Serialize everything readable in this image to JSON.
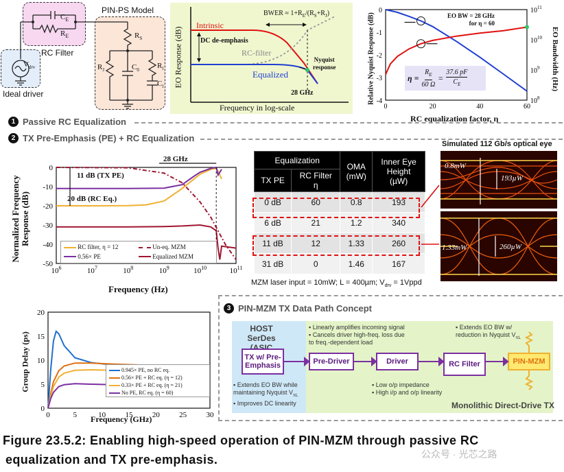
{
  "top_circuit": {
    "ce_label": "C",
    "ce_sub": "E",
    "re_label": "R",
    "re_sub": "E",
    "rc_filter_label": "RC Filter",
    "vdrv_label": "V",
    "vdrv_sub": "drv",
    "driver_label": "Ideal driver",
    "pinps_title": "PIN-PS Model",
    "rs_label": "R",
    "rs_sub": "S",
    "rj_label": "R",
    "rj_sub": "J",
    "c0_label": "C",
    "c0_sub": "0",
    "rl_label": "R",
    "rl_sub": "l",
    "cl_label": "C",
    "cl_sub": "l"
  },
  "concept_plot": {
    "ylabel": "EO Response (dB)",
    "xlabel": "Frequency in log-scale",
    "bwer": "BWER ≈ 1+R",
    "bwer_sub1": "E",
    "bwer_mid": "/(R",
    "bwer_sub2": "S",
    "bwer_plus": "+R",
    "bwer_sub3": "J",
    "bwer_end": ")",
    "intrinsic": "Intrinsic",
    "dc_deemph": "DC de-emphasis",
    "rc_filter": "RC-filter",
    "equalized": "Equalized",
    "nyquist": "Nyquist",
    "nyquist2": "response",
    "freq_28": "28 GHz",
    "colors": {
      "intrinsic": "#e01010",
      "rc": "#999999",
      "equalized": "#1f3fd0",
      "bg": "#f0f7cf"
    }
  },
  "eta_plot": {
    "chart_data": {
      "type": "line",
      "title": "",
      "xlabel": "RC equalization factor, η",
      "ylabel_left": "Relative Nyquist Response (dB)",
      "ylabel_right": "EO Bandwidth (Hz)",
      "xlim": [
        0,
        60
      ],
      "ylim_left": [
        -4,
        0
      ],
      "ylim_right_log10": [
        8,
        11
      ],
      "xticks": [
        "0",
        "20",
        "40",
        "60"
      ],
      "yticks_left": [
        "0",
        "-1",
        "-2",
        "-3",
        "-4"
      ],
      "yticks_right": [
        "10",
        "10",
        "10",
        "10"
      ],
      "yticks_right_exp": [
        "11",
        "10",
        "9",
        "8"
      ],
      "series": [
        {
          "name": "Relative Nyquist Response",
          "axis": "left",
          "color": "#1f3fd0",
          "x": [
            0,
            5,
            10,
            15,
            20,
            30,
            40,
            50,
            60
          ],
          "y": [
            0,
            -0.12,
            -0.3,
            -0.5,
            -0.75,
            -1.4,
            -2.1,
            -2.85,
            -3.6
          ]
        },
        {
          "name": "EO Bandwidth",
          "axis": "right_log10",
          "color": "#e01010",
          "x": [
            0,
            2,
            5,
            10,
            15,
            20,
            30,
            40,
            50,
            60
          ],
          "y": [
            8.85,
            9.2,
            9.45,
            9.7,
            9.87,
            9.98,
            10.12,
            10.22,
            10.3,
            10.42
          ]
        }
      ]
    },
    "annot": "EO BW = 28 GHz",
    "annot2": "for η = 60",
    "formula_eta": "η =",
    "formula_re": "R",
    "formula_re_sub": "E",
    "formula_den": "60 Ω",
    "formula_eq": "=",
    "formula_num2": "37.6 pF",
    "formula_ce": "C",
    "formula_ce_sub": "E"
  },
  "section1": {
    "num": "1",
    "title": "Passive RC Equalization"
  },
  "section2": {
    "num": "2",
    "title": "TX Pre-Emphasis (PE) + RC Equalization"
  },
  "section3": {
    "num": "3",
    "title": "PIN-MZM TX Data Path Concept"
  },
  "freq_plot": {
    "chart_data": {
      "type": "line",
      "xlabel": "Frequency (Hz)",
      "ylabel": "Normalized Frequency Response (dB)",
      "xlim_log10": [
        6,
        11
      ],
      "ylim": [
        -50,
        0
      ],
      "xticks": [
        "10",
        "10",
        "10",
        "10",
        "10",
        "10"
      ],
      "xticks_exp": [
        "6",
        "7",
        "8",
        "9",
        "10",
        "11"
      ],
      "yticks": [
        "0",
        "-10",
        "-20",
        "-30",
        "-40",
        "-50"
      ],
      "series": [
        {
          "name": "RC filter, η = 12",
          "color": "#f0b030",
          "x_log10": [
            6,
            7,
            8,
            8.5,
            9,
            9.5,
            10,
            10.3,
            10.45,
            10.5,
            10.6
          ],
          "y": [
            -20,
            -20,
            -19.9,
            -19.5,
            -17.5,
            -11,
            -3.5,
            -1,
            -0.5,
            -2,
            -6
          ]
        },
        {
          "name": "0.56× PE",
          "color": "#7b2fa1",
          "x_log10": [
            6,
            8,
            9,
            9.5,
            9.8,
            10,
            10.3,
            10.45,
            10.5,
            10.6
          ],
          "y": [
            -11,
            -11,
            -10.8,
            -9,
            -5,
            -2.5,
            -0.5,
            0,
            -4,
            -1
          ]
        },
        {
          "name": "Un-eq. MZM",
          "color": "#a01530",
          "dash": true,
          "x_log10": [
            6,
            8,
            9,
            9.5,
            10,
            10.3,
            10.5,
            10.7,
            11
          ],
          "y": [
            0,
            -0.2,
            -3,
            -8,
            -18,
            -26,
            -33,
            -40,
            -48
          ]
        },
        {
          "name": "Equalized MZM",
          "color": "#a01530",
          "x_log10": [
            6,
            8,
            9,
            9.5,
            10,
            10.3,
            10.45,
            10.5,
            10.55,
            10.6,
            11
          ],
          "y": [
            -31,
            -31,
            -30.8,
            -30.5,
            -30,
            -31,
            -33,
            -42,
            -48,
            -41,
            -42
          ]
        }
      ]
    },
    "annot_28": "28 GHz",
    "annot_11": "11 dB (TX PE)",
    "annot_20": "20 dB (RC Eq.)",
    "legend": [
      "RC filter, η = 12",
      "Un-eq. MZM",
      "0.56× PE",
      "Equalized MZM"
    ]
  },
  "table": {
    "h_equalization": "Equalization",
    "h_oma": "OMA",
    "h_oma_unit": "(mW)",
    "h_eye": "Inner Eye",
    "h_eye2": "Height",
    "h_eye_unit": "(µW)",
    "h_txpe": "TX PE",
    "h_rcfilter": "RC Filter",
    "h_eta": "η",
    "rows": [
      {
        "pe": "0 dB",
        "eta": "60",
        "oma": "0.8",
        "eye": "193"
      },
      {
        "pe": "6 dB",
        "eta": "21",
        "oma": "1.2",
        "eye": "340"
      },
      {
        "pe": "11 dB",
        "eta": "12",
        "oma": "1.33",
        "eye": "260"
      },
      {
        "pe": "31 dB",
        "eta": "0",
        "oma": "1.46",
        "eye": "167"
      }
    ],
    "footnote": "MZM laser input = 10mW; L = 400µm; V",
    "footnote_sub": "drv",
    "footnote_end": " = 1Vppd"
  },
  "eyes": {
    "title": "Simulated 112 Gb/s optical eye",
    "top_oma": "0.8mW",
    "top_eye": "193µW",
    "bot_oma": "1.33mW",
    "bot_eye": "260µW"
  },
  "group_delay": {
    "chart_data": {
      "type": "line",
      "xlabel": "Frequency (GHz)",
      "ylabel": "Group Delay (ps)",
      "xlim": [
        0,
        30
      ],
      "ylim": [
        0,
        20
      ],
      "xticks": [
        "0",
        "5",
        "10",
        "15",
        "20",
        "25",
        "30"
      ],
      "yticks": [
        "0",
        "5",
        "10",
        "15",
        "20"
      ],
      "series": [
        {
          "name": "0.945× PE, no RC eq.",
          "color": "#1f6fd0",
          "x": [
            0,
            0.5,
            1,
            1.5,
            2,
            3,
            5,
            8,
            12,
            20,
            30
          ],
          "y": [
            0,
            8,
            14,
            16,
            15.5,
            13,
            10.5,
            9.5,
            9,
            8.8,
            8.5
          ]
        },
        {
          "name": "0.56× PE + RC eq. (η = 12)",
          "color": "#e07010",
          "x": [
            0,
            0.5,
            1,
            2,
            3,
            5,
            8,
            12,
            20,
            30
          ],
          "y": [
            0,
            3,
            5.5,
            7.8,
            8.8,
            9.4,
            9.4,
            9.2,
            8.9,
            8.6
          ]
        },
        {
          "name": "0.33× PE + RC eq. (η = 21)",
          "color": "#f0b030",
          "x": [
            0,
            0.5,
            1,
            2,
            3,
            5,
            8,
            12,
            20,
            30
          ],
          "y": [
            0,
            2.5,
            4.5,
            6.5,
            7.3,
            7.9,
            8.0,
            7.9,
            7.7,
            7.6
          ]
        },
        {
          "name": "No PE, RC eq. (η = 60)",
          "color": "#7b2fa1",
          "x": [
            0,
            0.5,
            1,
            2,
            3,
            5,
            8,
            12,
            20,
            30
          ],
          "y": [
            0,
            2,
            3.3,
            4.5,
            4.9,
            5.1,
            5.0,
            4.9,
            4.7,
            4.6
          ]
        }
      ]
    },
    "legend": [
      "0.945× PE, no RC eq.",
      "0.56× PE + RC eq. (η = 12)",
      "0.33× PE + RC eq. (η = 21)",
      "No PE, RC eq. (η = 60)"
    ]
  },
  "flow": {
    "host": "HOST SerDes",
    "host2": "(ASIC switch)",
    "tx": "TX w/ Pre-Emphasis",
    "predriver": "Pre-Driver",
    "driver": "Driver",
    "rcfilter": "RC Filter",
    "pinmzm": "PIN-MZM",
    "note_pd1": "▪ Linearly amplifies incoming signal",
    "note_pd2": "▪ Cancels driver high-freq. loss due",
    "note_pd3": "   to freq.-dependent load",
    "note_rc1": "▪ Extends EO BW w/",
    "note_rc2": "   reduction in Nyquist V",
    "note_rc2_sub": "πL",
    "note_tx1": "▪ Extends EO BW while",
    "note_tx2": "   maintaining Nyquist V",
    "note_tx2_sub": "πL",
    "note_tx3": "▪ Improves DC linearity",
    "note_dr1": "▪ Low o/p impedance",
    "note_dr2": "▪ High i/p and o/p linearity",
    "mono": "Monolithic Direct-Drive TX"
  },
  "caption": {
    "line1": "Figure 23.5.2: Enabling high-speed operation of PIN-MZM through passive RC",
    "line2": "equalization and TX pre-emphasis.",
    "watermark": "公众号 · 光芯之路"
  }
}
